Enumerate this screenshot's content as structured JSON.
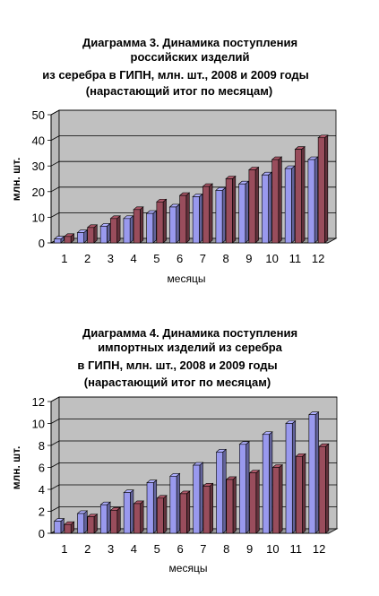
{
  "chart_data": [
    {
      "type": "bar",
      "title_lines": [
        "Диаграмма 3. Динамика поступления",
        "российских изделий",
        "из серебра в ГИПН, млн. шт., 2008 и 2009 годы",
        "(нарастающий итог по месяцам)"
      ],
      "xlabel": "месяцы",
      "ylabel": "млн. шт.",
      "ylim": [
        0,
        50
      ],
      "yticks": [
        "0",
        "10",
        "20",
        "30",
        "40",
        "50"
      ],
      "grid": true,
      "categories": [
        "1",
        "2",
        "3",
        "4",
        "5",
        "6",
        "7",
        "8",
        "9",
        "10",
        "11",
        "12"
      ],
      "series": [
        {
          "color": "#9999ee",
          "values": [
            1.5,
            4,
            6.5,
            9.5,
            11.5,
            14,
            18,
            20.5,
            23,
            26.5,
            29,
            32.5
          ]
        },
        {
          "color": "#994d5c",
          "values": [
            2.5,
            6,
            9.5,
            13,
            16,
            18.5,
            22,
            25,
            28.5,
            32.5,
            36.5,
            41
          ]
        }
      ]
    },
    {
      "type": "bar",
      "title_lines": [
        "Диаграмма 4. Динамика поступления",
        "импортных изделий из серебра",
        "в ГИПН, млн. шт., 2008 и 2009 годы",
        "(нарастающий итог по месяцам)"
      ],
      "xlabel": "месяцы",
      "ylabel": "млн. шт.",
      "ylim": [
        0,
        12
      ],
      "yticks": [
        "0",
        "2",
        "4",
        "6",
        "8",
        "10",
        "12"
      ],
      "grid": true,
      "categories": [
        "1",
        "2",
        "3",
        "4",
        "5",
        "6",
        "7",
        "8",
        "9",
        "10",
        "11",
        "12"
      ],
      "series": [
        {
          "color": "#9999ee",
          "values": [
            1.1,
            1.8,
            2.6,
            3.7,
            4.6,
            5.2,
            6.2,
            7.4,
            8.1,
            9.0,
            10.0,
            10.8
          ]
        },
        {
          "color": "#994d5c",
          "values": [
            0.8,
            1.5,
            2.1,
            2.7,
            3.2,
            3.6,
            4.3,
            4.9,
            5.5,
            6.0,
            7.0,
            7.9
          ]
        }
      ]
    }
  ]
}
